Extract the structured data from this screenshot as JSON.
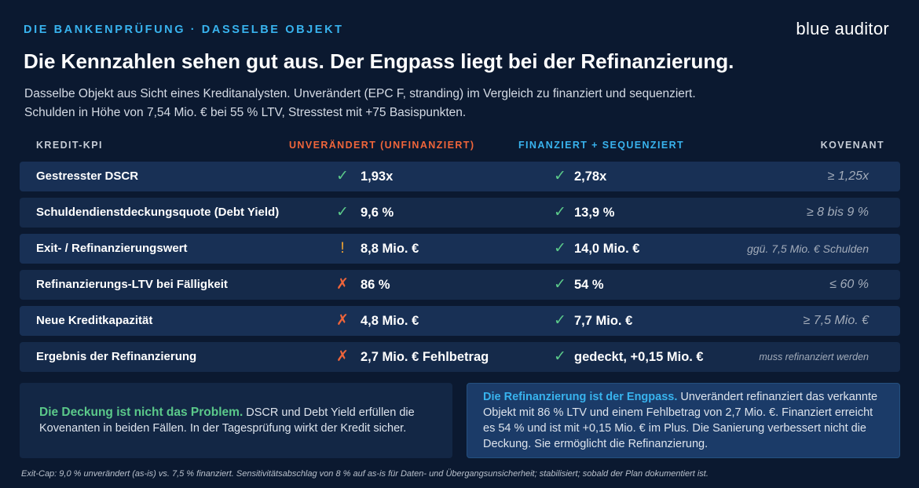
{
  "header": {
    "eyebrow": "DIE BANKENPRÜFUNG · DASSELBE OBJEKT",
    "brand": "blue auditor",
    "title": "Die Kennzahlen sehen gut aus. Der Engpass liegt bei der Refinanzierung.",
    "subtitle_line1": "Dasselbe Objekt aus Sicht eines Kreditanalysten. Unverändert (EPC F, stranding) im Vergleich zu finanziert und sequenziert.",
    "subtitle_line2": "Schulden in Höhe von 7,54 Mio. € bei 55 % LTV, Stresstest mit +75 Basispunkten."
  },
  "table": {
    "headers": {
      "kpi": "KREDIT-KPI",
      "unchanged": "UNVERÄNDERT (UNFINANZIERT)",
      "financed": "FINANZIERT + SEQUENZIERT",
      "covenant": "KOVENANT"
    },
    "rows": [
      {
        "kpi": "Gestresster DSCR",
        "u_mark": "✓",
        "u_status": "ok",
        "u_val": "1,93x",
        "f_mark": "✓",
        "f_val": "2,78x",
        "covenant": "≥ 1,25x"
      },
      {
        "kpi": "Schuldendienstdeckungsquote (Debt Yield)",
        "u_mark": "✓",
        "u_status": "ok",
        "u_val": "9,6 %",
        "f_mark": "✓",
        "f_val": "13,9 %",
        "covenant": "≥ 8 bis 9 %"
      },
      {
        "kpi": "Exit- / Refinanzierungswert",
        "u_mark": "!",
        "u_status": "warn",
        "u_val": "8,8 Mio. €",
        "f_mark": "✓",
        "f_val": "14,0 Mio. €",
        "covenant": "ggü. 7,5 Mio. € Schulden"
      },
      {
        "kpi": "Refinanzierungs-LTV bei Fälligkeit",
        "u_mark": "✗",
        "u_status": "bad",
        "u_val": "86 %",
        "f_mark": "✓",
        "f_val": "54 %",
        "covenant": "≤ 60 %"
      },
      {
        "kpi": "Neue Kreditkapazität",
        "u_mark": "✗",
        "u_status": "bad",
        "u_val": "4,8 Mio. €",
        "f_mark": "✓",
        "f_val": "7,7 Mio. €",
        "covenant": "≥ 7,5 Mio. €"
      },
      {
        "kpi": "Ergebnis der Refinanzierung",
        "u_mark": "✗",
        "u_status": "bad",
        "u_val": "2,7 Mio. € Fehlbetrag",
        "f_mark": "✓",
        "f_val": "gedeckt, +0,15 Mio. €",
        "covenant": "muss refinanziert werden"
      }
    ]
  },
  "callouts": {
    "left_lead": "Die Deckung ist nicht das Problem.",
    "left_body": " DSCR und Debt Yield erfüllen die Kovenanten in beiden Fällen. In der Tagesprüfung wirkt der Kredit sicher.",
    "right_lead": "Die Refinanzierung ist der Engpass.",
    "right_body": " Unverändert refinanziert das verkannte Objekt mit 86 % LTV und einem Fehlbetrag von 2,7 Mio. €. Finanziert erreicht es 54 % und ist mit +0,15 Mio. € im Plus. Die Sanierung verbessert nicht die Deckung. Sie ermöglicht die Refinanzierung."
  },
  "footnote": "Exit-Cap: 9,0 % unverändert (as-is) vs. 7,5 % finanziert. Sensitivitätsabschlag von 8 % auf as-is für Daten- und Übergangsunsicherheit; stabilisiert; sobald der Plan dokumentiert ist.",
  "colors": {
    "background": "#0b1930",
    "accent_blue": "#38b3ee",
    "accent_orange": "#f0653a",
    "ok_green": "#5bc98a",
    "warn_amber": "#f2a532"
  },
  "icons": {
    "ok": "check-icon",
    "warn": "exclamation-icon",
    "bad": "cross-icon"
  }
}
